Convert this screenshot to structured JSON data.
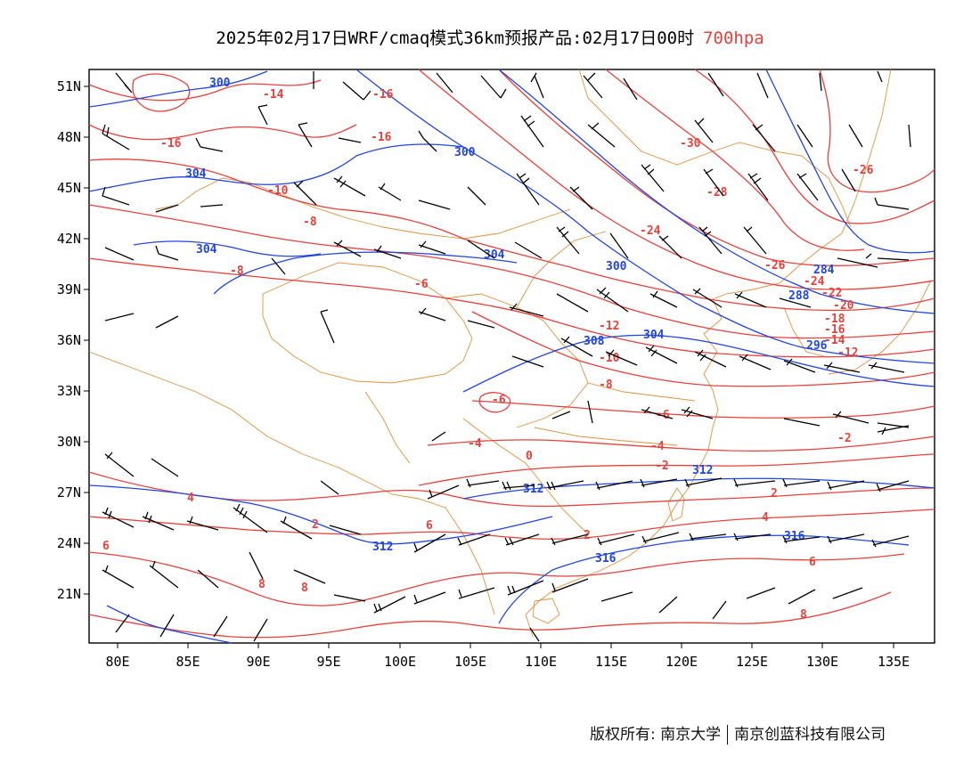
{
  "title": {
    "main": "2025年02月17日WRF/cmaq模式36km预报产品:02月17日00时",
    "level": "700hpa"
  },
  "axes": {
    "lon_labels": [
      "80E",
      "85E",
      "90E",
      "95E",
      "100E",
      "105E",
      "110E",
      "115E",
      "120E",
      "125E",
      "130E",
      "135E"
    ],
    "lat_labels": [
      "51N",
      "48N",
      "45N",
      "42N",
      "39N",
      "36N",
      "33N",
      "30N",
      "27N",
      "24N",
      "21N"
    ]
  },
  "colors": {
    "temperature_contour": "#e8413c",
    "height_contour": "#2145e0",
    "boundary": "#e0913c",
    "wind_barb": "#000000"
  },
  "temperature_labels": [
    "-16",
    "-14",
    "-16",
    "-16",
    "-10",
    "-8",
    "-8",
    "-6",
    "-30",
    "-28",
    "-26",
    "-24",
    "-26",
    "-24",
    "-22",
    "-20",
    "-18",
    "-16",
    "-14",
    "-12",
    "-12",
    "-10",
    "-8",
    "-6",
    "-6",
    "-4",
    "-4",
    "-2",
    "-2",
    "0",
    "2",
    "2",
    "2",
    "4",
    "4",
    "6",
    "6",
    "6",
    "8",
    "8",
    "8"
  ],
  "height_labels": [
    "300",
    "304",
    "300",
    "304",
    "304",
    "300",
    "288",
    "284",
    "308",
    "304",
    "296",
    "312",
    "312",
    "316",
    "316",
    "312"
  ],
  "copyright": {
    "left": "版权所有: 南京大学",
    "right": "南京创蓝科技有限公司"
  }
}
